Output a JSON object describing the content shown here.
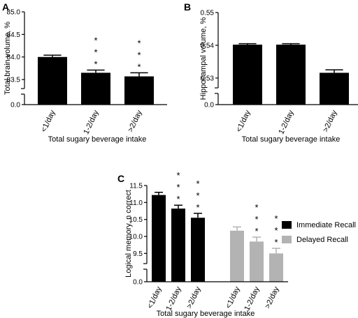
{
  "chart_data": [
    {
      "panel": "A",
      "type": "bar",
      "categories": [
        "<1/day",
        "1-2/day",
        ">2/day"
      ],
      "values": [
        84.0,
        83.65,
        83.57
      ],
      "errors": [
        0.04,
        0.06,
        0.08
      ],
      "significance": [
        "",
        "*\n*\n*",
        "*\n*\n*"
      ],
      "ylabel": "Total brain volume, %",
      "xlabel": "Total sugary beverage intake",
      "ylim": [
        83.3,
        85.0
      ],
      "axis_break_below": 0.0,
      "yticks": [
        "83.5",
        "84.0",
        "84.5",
        "85.0"
      ],
      "ytick_zero": "0.0",
      "bar_color": "#000000"
    },
    {
      "panel": "B",
      "type": "bar",
      "categories": [
        "<1/day",
        "1-2/day",
        ">2/day"
      ],
      "values": [
        0.5402,
        0.5402,
        0.5316
      ],
      "errors": [
        0.0003,
        0.0003,
        0.0009
      ],
      "significance": [
        "",
        "",
        ""
      ],
      "ylabel": "Hippocampal volume, %",
      "xlabel": "Total sugary beverage intake",
      "ylim": [
        0.527,
        0.55
      ],
      "axis_break_below": 0.0,
      "yticks": [
        "0.53",
        "0.54",
        "0.55"
      ],
      "ytick_zero": "0.0",
      "bar_color": "#000000"
    },
    {
      "panel": "C",
      "type": "bar",
      "categories": [
        "<1/day",
        "1-2/day",
        ">2/day"
      ],
      "series": [
        {
          "name": "Immediate Recall",
          "values": [
            11.22,
            10.82,
            10.55
          ],
          "errors": [
            0.08,
            0.1,
            0.13
          ],
          "color": "#000000",
          "significance": [
            "",
            "*\n*\n*",
            "*\n*\n*"
          ]
        },
        {
          "name": "Delayed Recall",
          "values": [
            10.17,
            9.85,
            9.5
          ],
          "errors": [
            0.11,
            0.13,
            0.15
          ],
          "color": "#b3b3b3",
          "significance": [
            "",
            "*\n*\n*",
            "*\n*\n*"
          ]
        }
      ],
      "ylabel": "Logical memory, n correct",
      "xlabel": "Total sugary beverage intake",
      "ylim": [
        9.2,
        11.5
      ],
      "axis_break_below": 0.0,
      "yticks": [
        "9.5",
        "10.0",
        "10.5",
        "11.0",
        "11.5"
      ],
      "ytick_zero": "0.0",
      "legend_position": "right"
    }
  ]
}
